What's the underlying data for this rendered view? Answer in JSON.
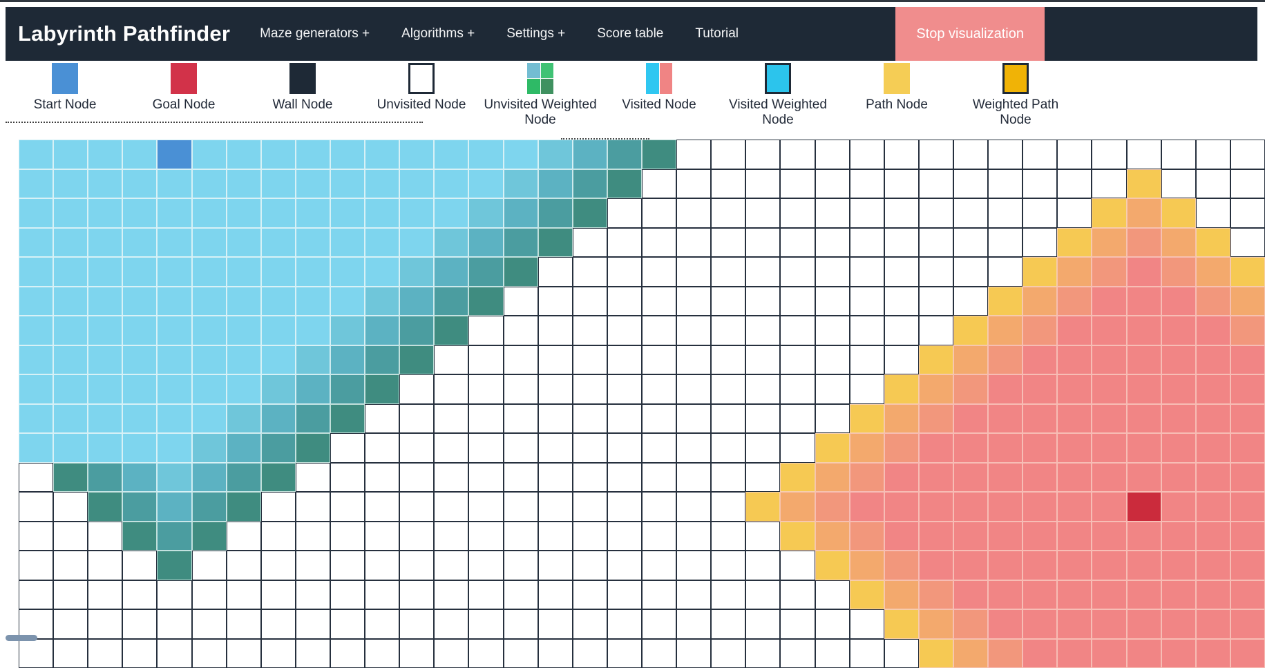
{
  "navbar": {
    "title": "Labyrinth Pathfinder",
    "items": [
      {
        "label": "Maze generators +"
      },
      {
        "label": "Algorithms +"
      },
      {
        "label": "Settings +"
      },
      {
        "label": "Score table"
      },
      {
        "label": "Tutorial"
      }
    ],
    "stop_button": "Stop visualization",
    "colors": {
      "bg": "#1e2936",
      "stop_button_bg": "#f08d8d",
      "text": "#f3f4f5"
    }
  },
  "legend": {
    "items": [
      {
        "label": "Start Node",
        "type": "start",
        "swatch": {
          "kind": "solid",
          "colors": [
            "#4a90d5"
          ],
          "border": false,
          "dots": false
        }
      },
      {
        "label": "Goal Node",
        "type": "goal",
        "swatch": {
          "kind": "solid",
          "colors": [
            "#d23249"
          ],
          "border": false,
          "dots": false
        }
      },
      {
        "label": "Wall Node",
        "type": "wall",
        "swatch": {
          "kind": "solid",
          "colors": [
            "#1e2936"
          ],
          "border": false,
          "dots": false
        }
      },
      {
        "label": "Unvisited Node",
        "type": "unvisited",
        "swatch": {
          "kind": "solid",
          "colors": [
            "#ffffff"
          ],
          "border": true,
          "dots": false
        }
      },
      {
        "label": "Unvisited Weighted Node",
        "type": "unvisited-weighted",
        "swatch": {
          "kind": "quad",
          "colors": [
            "#73bdd2",
            "#3fc274",
            "#2eba66",
            "#3f9160"
          ],
          "border": false,
          "dots": true
        }
      },
      {
        "label": "Visited Node",
        "type": "visited",
        "swatch": {
          "kind": "split",
          "colors": [
            "#2fc7f1",
            "#f08484"
          ],
          "border": false,
          "dots": true
        }
      },
      {
        "label": "Visited Weighted Node",
        "type": "visited-weighted",
        "swatch": {
          "kind": "solid",
          "colors": [
            "#2cc4ec"
          ],
          "border": true,
          "dots": false
        }
      },
      {
        "label": "Path Node",
        "type": "path",
        "swatch": {
          "kind": "solid",
          "colors": [
            "#f5cd55"
          ],
          "border": false,
          "dots": true
        }
      },
      {
        "label": "Weighted Path Node",
        "type": "weighted-path",
        "swatch": {
          "kind": "solid",
          "colors": [
            "#f0b306"
          ],
          "border": true,
          "dots": false
        }
      }
    ]
  },
  "grid": {
    "cols": 36,
    "rows": 18,
    "start": {
      "row": 0,
      "col": 4
    },
    "goal": {
      "row": 12,
      "col": 32
    },
    "cell_types": {
      ".": {
        "name": "unvisited",
        "bg": "#ffffff",
        "border": "#26303e"
      },
      "a": {
        "name": "visited-light",
        "bg": "#7ed5ee",
        "border": "#d7f1f6"
      },
      "b": {
        "name": "visited-mid1",
        "bg": "#6fc6da",
        "border": "#d7f1f6"
      },
      "c": {
        "name": "visited-mid2",
        "bg": "#5cb2c2",
        "border": "#cdeaee"
      },
      "d": {
        "name": "visited-deep",
        "bg": "#4b9da0",
        "border": "#c5e4e4"
      },
      "e": {
        "name": "visited-frontier",
        "bg": "#3f8c80",
        "border": "#c0ded8"
      },
      "S": {
        "name": "start-node",
        "bg": "#4a90d5",
        "border": "#d7f1f6"
      },
      "p": {
        "name": "goal-visited",
        "bg": "#f18585",
        "border": "#f7bdb5"
      },
      "q": {
        "name": "goal-ring-salmon-orange",
        "bg": "#f2977c",
        "border": "#f7bdb5"
      },
      "o": {
        "name": "goal-ring-orange",
        "bg": "#f3a96d",
        "border": "#f7c3ae"
      },
      "y": {
        "name": "goal-frontier-yellow",
        "bg": "#f6c953",
        "border": "#f7ceac"
      },
      "G": {
        "name": "goal-node",
        "bg": "#cb2b3c",
        "border": "#f7bdb5"
      }
    },
    "map": [
      "aaaaSaaaaaaaaaabcde.................",
      "aaaaaaaaaaaaaabcde..............y...",
      "aaaaaaaaaaaaabcde..............yoy..",
      "aaaaaaaaaaaabcde..............yoqoy.",
      "aaaaaaaaaaabcde..............yoqpqoy",
      "aaaaaaaaaabcde..............yoqpppqo",
      "aaaaaaaaabcde..............yoqpppppq",
      "aaaaaaaabcde..............yoqppppppp",
      "aaaaaaabcde..............yoqpppppppp",
      "aaaaaabcde..............yoqppppppppp",
      "aaaaabcde..............yoqpppppppppp",
      ".edcbcde..............yoqppppppppppp",
      "..edcde..............yoqppppppppGppp",
      "...ede................yoqppppppppppp",
      "....e..................yoqpppppppppp",
      "........................yoqppppppppp",
      ".........................yoqpppppppp",
      "..........................yoqppppppp"
    ]
  }
}
